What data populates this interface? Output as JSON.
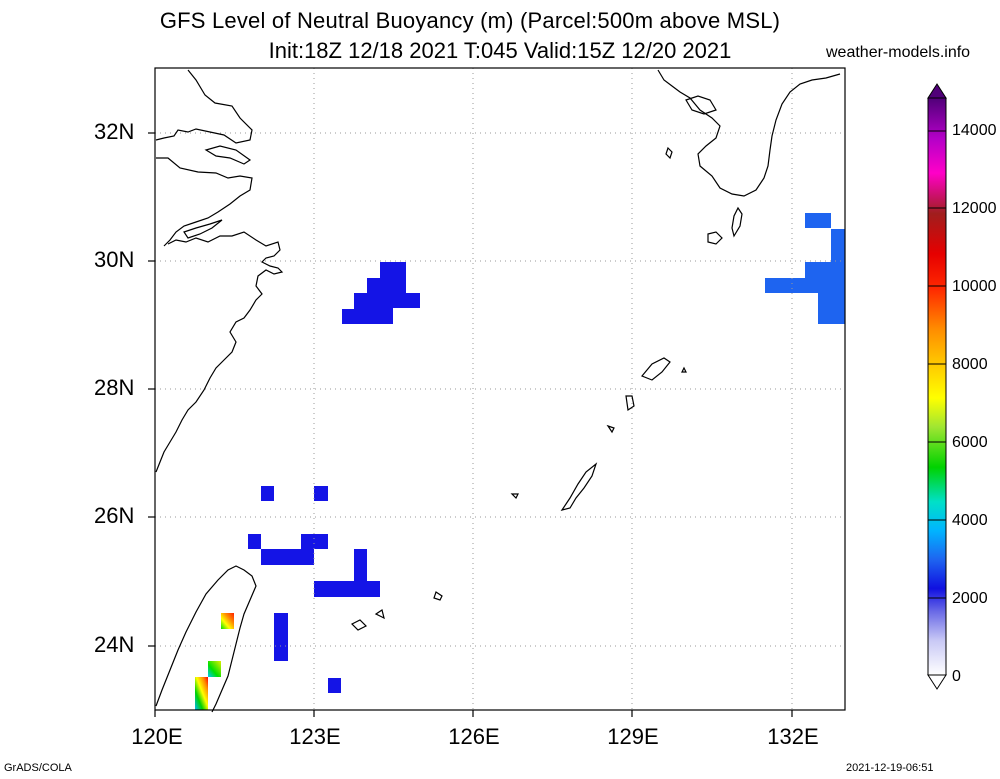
{
  "title": {
    "line1": "GFS Level of Neutral Buoyancy (m) (Parcel:500m above MSL)",
    "line2": "Init:18Z 12/18 2021 T:045 Valid:15Z 12/20 2021"
  },
  "source_label": "weather-models.info",
  "footer": {
    "left": "GrADS/COLA",
    "right": "2021-12-19-06:51"
  },
  "map": {
    "lon_range": [
      120,
      133
    ],
    "lat_range": [
      23,
      33
    ],
    "lon_ticks": [
      "120E",
      "123E",
      "126E",
      "129E",
      "132E"
    ],
    "lat_ticks": [
      "32N",
      "30N",
      "28N",
      "26N",
      "24N"
    ],
    "grid": "dotted"
  },
  "colorbar": {
    "unit": "m",
    "labels": [
      "14000",
      "12000",
      "10000",
      "8000",
      "6000",
      "4000",
      "2000",
      "0"
    ],
    "range": [
      0,
      15000
    ]
  },
  "colors": {
    "lnb_low": "#1414e6",
    "lnb_mid": "#1e64f0"
  }
}
